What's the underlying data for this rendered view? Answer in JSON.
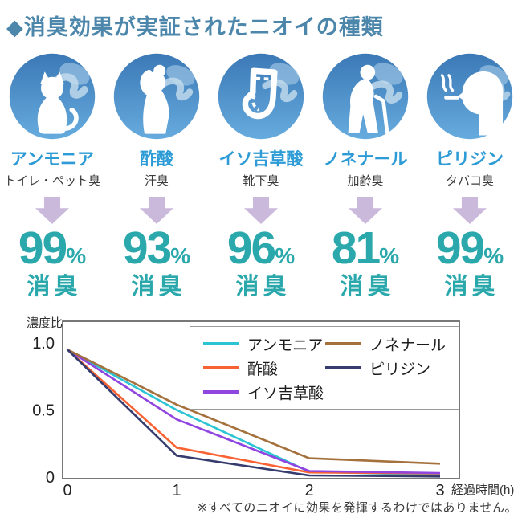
{
  "title": "◆消臭効果が実証されたニオイの種類",
  "accent_colors": {
    "title_blue": "#4c87ab",
    "label_blue": "#2d9bd5",
    "teal": "#2aa8ab",
    "arrow_lavender": "#cbb9dc",
    "circle_blue_top": "#3b79b6",
    "circle_blue_bottom": "#66abde"
  },
  "odors": [
    {
      "name": "アンモニア",
      "source": "トイレ・ペット臭",
      "percent": "99",
      "unit": "%",
      "action": "消臭",
      "icon": "cat-icon"
    },
    {
      "name": "酢酸",
      "source": "汗臭",
      "percent": "93",
      "unit": "%",
      "action": "消臭",
      "icon": "woman-sweat-icon"
    },
    {
      "name": "イソ吉草酸",
      "source": "靴下臭",
      "percent": "96",
      "unit": "%",
      "action": "消臭",
      "icon": "sock-icon"
    },
    {
      "name": "ノネナール",
      "source": "加齢臭",
      "percent": "81",
      "unit": "%",
      "action": "消臭",
      "icon": "elderly-person-icon"
    },
    {
      "name": "ピリジン",
      "source": "タバコ臭",
      "percent": "99",
      "unit": "%",
      "action": "消臭",
      "icon": "smoking-face-icon"
    }
  ],
  "chart_data": {
    "type": "line",
    "xlabel": "経過時間(h)",
    "ylabel": "濃度比",
    "x": [
      0,
      1,
      2,
      3
    ],
    "x_ticks": [
      "0",
      "1",
      "2",
      "3"
    ],
    "y_ticks": [
      "1.0",
      "0.5",
      "0"
    ],
    "ylim": [
      0,
      1.05
    ],
    "grid": false,
    "legend_position": "top-right-inside",
    "series": [
      {
        "name": "アンモニア",
        "color": "#2ac4d3",
        "values": [
          0.95,
          0.5,
          0.04,
          0.015
        ]
      },
      {
        "name": "酢酸",
        "color": "#f96233",
        "values": [
          0.95,
          0.22,
          0.035,
          0.027
        ]
      },
      {
        "name": "イソ吉草酸",
        "color": "#9045e0",
        "values": [
          0.95,
          0.43,
          0.045,
          0.03
        ]
      },
      {
        "name": "ノネナール",
        "color": "#a4703b",
        "values": [
          0.95,
          0.54,
          0.14,
          0.1
        ]
      },
      {
        "name": "ピリジン",
        "color": "#363c6e",
        "values": [
          0.95,
          0.16,
          0.012,
          0.004
        ]
      }
    ]
  },
  "footnote": "※すべてのニオイに効果を発揮するわけではありません。"
}
